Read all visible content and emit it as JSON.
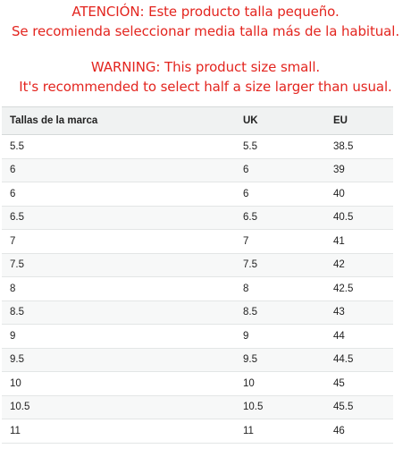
{
  "warning_es": {
    "line1": "ATENCIÓN: Este producto talla pequeño.",
    "line2": "Se recomienda seleccionar media talla más de la habitual."
  },
  "warning_en": {
    "line1": "WARNING: This product size small.",
    "line2": "It's recommended to select half a size larger than usual."
  },
  "colors": {
    "warning_text": "#e3251f",
    "header_bg": "#f0f2f2",
    "row_alt_bg": "#f7f8f8",
    "border": "#d5d9d9"
  },
  "size_table": {
    "headers": [
      "Tallas de la marca",
      "UK",
      "EU"
    ],
    "rows": [
      [
        "5.5",
        "5.5",
        "38.5"
      ],
      [
        "6",
        "6",
        "39"
      ],
      [
        "6",
        "6",
        "40"
      ],
      [
        "6.5",
        "6.5",
        "40.5"
      ],
      [
        "7",
        "7",
        "41"
      ],
      [
        "7.5",
        "7.5",
        "42"
      ],
      [
        "8",
        "8",
        "42.5"
      ],
      [
        "8.5",
        "8.5",
        "43"
      ],
      [
        "9",
        "9",
        "44"
      ],
      [
        "9.5",
        "9.5",
        "44.5"
      ],
      [
        "10",
        "10",
        "45"
      ],
      [
        "10.5",
        "10.5",
        "45.5"
      ],
      [
        "11",
        "11",
        "46"
      ]
    ]
  }
}
